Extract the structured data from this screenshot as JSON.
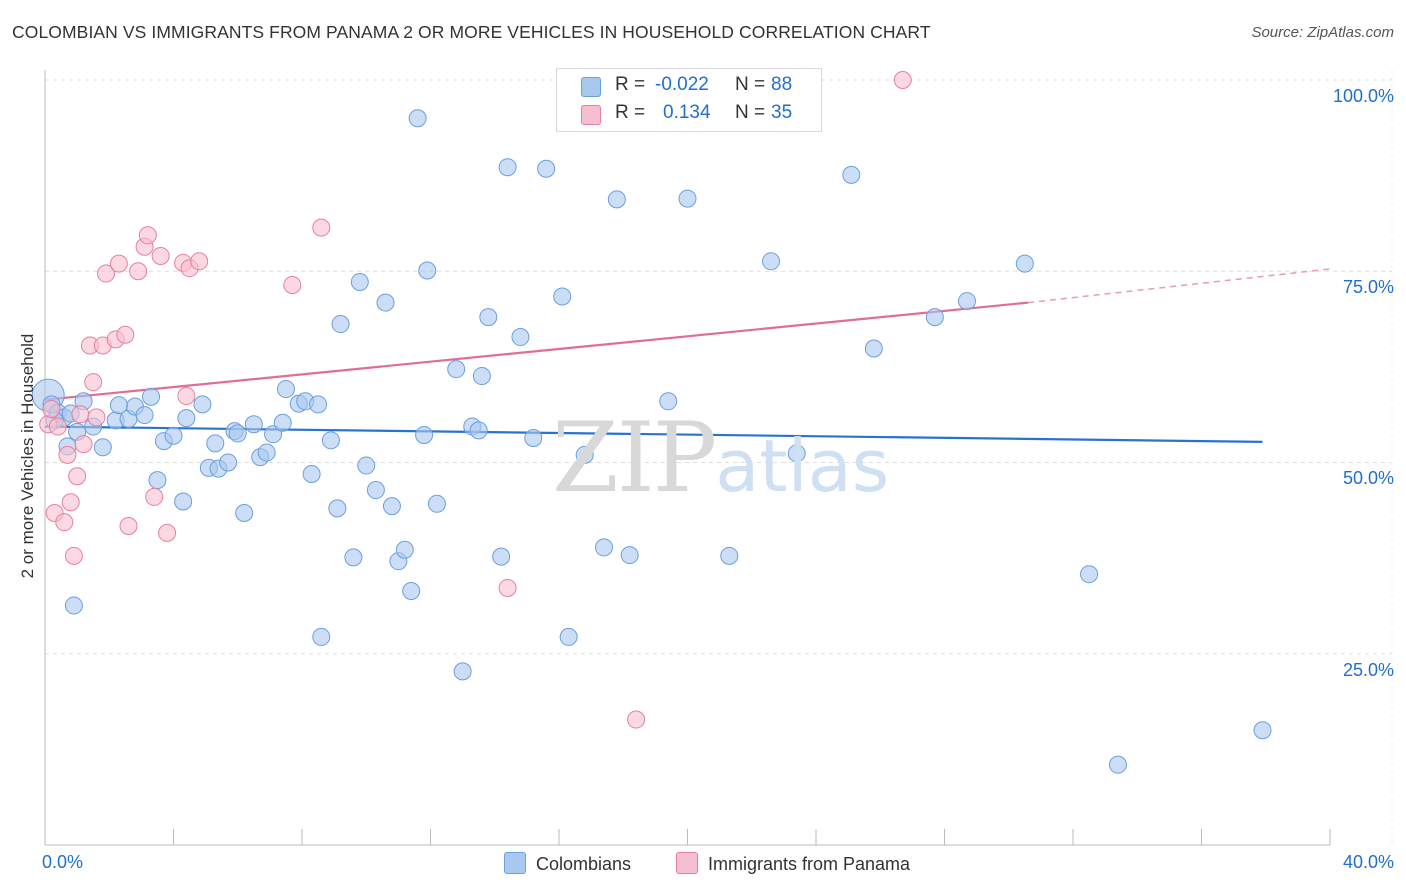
{
  "title": "COLOMBIAN VS IMMIGRANTS FROM PANAMA 2 OR MORE VEHICLES IN HOUSEHOLD CORRELATION CHART",
  "source": "Source: ZipAtlas.com",
  "watermark": {
    "zip": "ZIP",
    "atlas": "atlas"
  },
  "legend": {
    "rows": [
      {
        "r_label": "R =",
        "r_value": "-0.022",
        "n_label": "N =",
        "n_value": "88",
        "color": "#a9c8f0"
      },
      {
        "r_label": "R =",
        "r_value": "0.134",
        "n_label": "N =",
        "n_value": "35",
        "color": "#f6bfd0"
      }
    ]
  },
  "bottom_legend": [
    {
      "label": "Colombians",
      "color": "#a9c8f0"
    },
    {
      "label": "Immigrants from Panama",
      "color": "#f6bfd0"
    }
  ],
  "chart_data": {
    "type": "scatter",
    "title": "COLOMBIAN VS IMMIGRANTS FROM PANAMA 2 OR MORE VEHICLES IN HOUSEHOLD CORRELATION CHART",
    "xlabel": "",
    "ylabel": "2 or more Vehicles in Household",
    "xlim": [
      0,
      40
    ],
    "ylim": [
      0,
      102
    ],
    "x_tick_labels": [
      "0.0%",
      "40.0%"
    ],
    "y_tick_labels": [
      "100.0%",
      "75.0%",
      "50.0%",
      "25.0%"
    ],
    "y_tick_values": [
      100,
      75,
      50,
      25
    ],
    "grid": true,
    "series": [
      {
        "name": "Colombians",
        "color": "#6a9fe0",
        "fill": "#a9c8f0",
        "trend": {
          "x": [
            0,
            37.9
          ],
          "y": [
            54.7,
            52.7
          ]
        },
        "points": [
          [
            0.1,
            58.8
          ],
          [
            0.2,
            57.6
          ],
          [
            0.4,
            56.5
          ],
          [
            0.6,
            55.9
          ],
          [
            0.7,
            52.1
          ],
          [
            0.9,
            31.3
          ],
          [
            1.0,
            54.0
          ],
          [
            1.2,
            58.0
          ],
          [
            1.5,
            54.7
          ],
          [
            1.8,
            52.0
          ],
          [
            2.2,
            55.5
          ],
          [
            2.6,
            55.7
          ],
          [
            2.8,
            57.3
          ],
          [
            3.3,
            58.6
          ],
          [
            3.5,
            47.7
          ],
          [
            3.7,
            52.8
          ],
          [
            4.3,
            44.9
          ],
          [
            4.4,
            55.8
          ],
          [
            4.9,
            57.6
          ],
          [
            5.1,
            49.3
          ],
          [
            5.3,
            52.5
          ],
          [
            5.4,
            49.2
          ],
          [
            5.7,
            50.0
          ],
          [
            5.9,
            54.1
          ],
          [
            6.2,
            43.4
          ],
          [
            6.5,
            55.0
          ],
          [
            6.7,
            50.7
          ],
          [
            6.9,
            51.3
          ],
          [
            7.1,
            53.7
          ],
          [
            7.5,
            59.6
          ],
          [
            7.9,
            57.7
          ],
          [
            8.1,
            58.0
          ],
          [
            8.3,
            48.5
          ],
          [
            8.5,
            57.6
          ],
          [
            8.6,
            27.2
          ],
          [
            9.1,
            44.0
          ],
          [
            9.2,
            68.1
          ],
          [
            9.6,
            37.6
          ],
          [
            9.8,
            73.6
          ],
          [
            10.0,
            49.6
          ],
          [
            10.3,
            46.4
          ],
          [
            10.6,
            70.9
          ],
          [
            10.8,
            44.3
          ],
          [
            11.0,
            37.1
          ],
          [
            11.2,
            38.6
          ],
          [
            11.4,
            33.2
          ],
          [
            11.6,
            95.0
          ],
          [
            11.9,
            75.1
          ],
          [
            12.2,
            44.6
          ],
          [
            12.8,
            62.2
          ],
          [
            13.0,
            22.7
          ],
          [
            13.3,
            54.7
          ],
          [
            13.6,
            61.3
          ],
          [
            13.8,
            69.0
          ],
          [
            14.2,
            37.7
          ],
          [
            14.4,
            88.6
          ],
          [
            14.8,
            66.4
          ],
          [
            15.2,
            53.2
          ],
          [
            15.6,
            88.4
          ],
          [
            16.1,
            71.7
          ],
          [
            16.3,
            27.2
          ],
          [
            16.8,
            51.0
          ],
          [
            17.4,
            38.9
          ],
          [
            17.8,
            84.4
          ],
          [
            18.2,
            37.9
          ],
          [
            19.4,
            58.0
          ],
          [
            20.0,
            84.5
          ],
          [
            21.3,
            37.8
          ],
          [
            22.6,
            76.3
          ],
          [
            23.4,
            51.2
          ],
          [
            25.1,
            87.6
          ],
          [
            25.8,
            64.9
          ],
          [
            27.7,
            69.0
          ],
          [
            28.7,
            71.1
          ],
          [
            30.5,
            76.0
          ],
          [
            32.5,
            35.4
          ],
          [
            33.4,
            10.5
          ],
          [
            37.9,
            15.0
          ],
          [
            0.3,
            55.5
          ],
          [
            0.8,
            56.4
          ],
          [
            2.3,
            57.5
          ],
          [
            3.1,
            56.2
          ],
          [
            4.0,
            53.5
          ],
          [
            6.0,
            53.8
          ],
          [
            7.4,
            55.2
          ],
          [
            8.9,
            52.9
          ],
          [
            11.8,
            53.6
          ],
          [
            13.5,
            54.2
          ]
        ]
      },
      {
        "name": "Immigrants from Panama",
        "color": "#e87fa0",
        "fill": "#f6bfd0",
        "trend": {
          "x": [
            0,
            30.6
          ],
          "y": [
            58.2,
            70.9
          ]
        },
        "trend_dashed": {
          "x": [
            30.6,
            40
          ],
          "y": [
            70.9,
            75.3
          ]
        },
        "points": [
          [
            0.1,
            55.0
          ],
          [
            0.3,
            43.4
          ],
          [
            0.4,
            54.7
          ],
          [
            0.6,
            42.2
          ],
          [
            0.7,
            51.0
          ],
          [
            0.8,
            44.8
          ],
          [
            0.9,
            37.8
          ],
          [
            1.0,
            48.2
          ],
          [
            1.1,
            56.3
          ],
          [
            1.2,
            52.4
          ],
          [
            1.4,
            65.3
          ],
          [
            1.5,
            60.5
          ],
          [
            1.8,
            65.3
          ],
          [
            1.9,
            74.7
          ],
          [
            2.2,
            66.1
          ],
          [
            2.3,
            76.0
          ],
          [
            2.5,
            66.7
          ],
          [
            2.6,
            41.7
          ],
          [
            2.9,
            75.0
          ],
          [
            3.1,
            78.2
          ],
          [
            3.2,
            79.7
          ],
          [
            3.4,
            45.5
          ],
          [
            3.6,
            77.0
          ],
          [
            3.8,
            40.8
          ],
          [
            4.3,
            76.1
          ],
          [
            4.4,
            58.7
          ],
          [
            4.5,
            75.4
          ],
          [
            4.8,
            76.3
          ],
          [
            7.7,
            73.2
          ],
          [
            8.6,
            80.7
          ],
          [
            14.4,
            33.6
          ],
          [
            18.4,
            16.4
          ],
          [
            26.7,
            100.0
          ],
          [
            0.2,
            57.0
          ],
          [
            1.6,
            55.9
          ]
        ]
      }
    ]
  }
}
